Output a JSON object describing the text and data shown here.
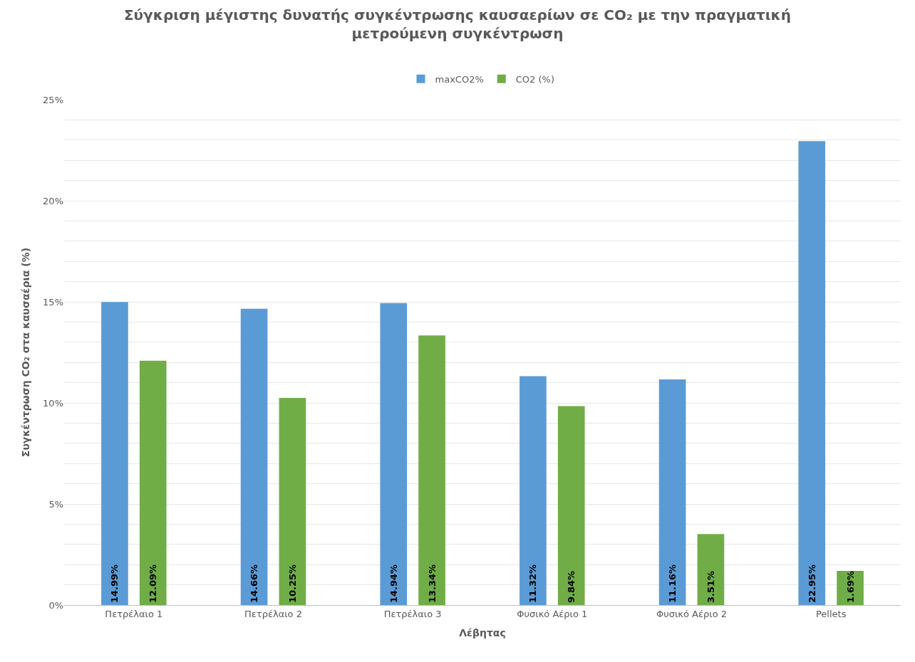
{
  "chart_data": {
    "type": "bar",
    "title": "Σύγκριση μέγιστης δυνατής συγκέντρωσης καυσαερίων σε CO₂ με την πραγματική μετρούμενη συγκέντρωση",
    "xlabel": "Λέβητας",
    "ylabel": "Συγκέντρωση CO₂ στα καυσαέρια (%)",
    "categories": [
      "Πετρέλαιο 1",
      "Πετρέλαιο 2",
      "Πετρέλαιο 3",
      "Φυσικό Αέριο 1",
      "Φυσικό Αέριο 2",
      "Pellets"
    ],
    "series": [
      {
        "name": "maxCO2%",
        "color": "#5b9bd5",
        "values": [
          14.99,
          14.66,
          14.94,
          11.32,
          11.16,
          22.95
        ],
        "value_labels": [
          "14.99%",
          "14.66%",
          "14.94%",
          "11.32%",
          "11.16%",
          "22.95%"
        ]
      },
      {
        "name": "CO2 (%)",
        "color": "#70ad47",
        "values": [
          12.09,
          10.25,
          13.34,
          9.84,
          3.51,
          1.69
        ],
        "value_labels": [
          "12.09%",
          "10.25%",
          "13.34%",
          "9.84%",
          "3.51%",
          "1.69%"
        ]
      }
    ],
    "ylim": [
      0,
      25
    ],
    "yticks": [
      {
        "value": 0,
        "label": "0%"
      },
      {
        "value": 1,
        "label": null
      },
      {
        "value": 2,
        "label": null
      },
      {
        "value": 3,
        "label": null
      },
      {
        "value": 4,
        "label": null
      },
      {
        "value": 5,
        "label": "5%"
      },
      {
        "value": 6,
        "label": null
      },
      {
        "value": 7,
        "label": null
      },
      {
        "value": 8,
        "label": null
      },
      {
        "value": 9,
        "label": null
      },
      {
        "value": 10,
        "label": "10%"
      },
      {
        "value": 11,
        "label": null
      },
      {
        "value": 12,
        "label": null
      },
      {
        "value": 13,
        "label": null
      },
      {
        "value": 14,
        "label": null
      },
      {
        "value": 15,
        "label": "15%"
      },
      {
        "value": 16,
        "label": null
      },
      {
        "value": 17,
        "label": null
      },
      {
        "value": 18,
        "label": null
      },
      {
        "value": 19,
        "label": null
      },
      {
        "value": 20,
        "label": "20%"
      },
      {
        "value": 21,
        "label": null
      },
      {
        "value": 22,
        "label": null
      },
      {
        "value": 23,
        "label": null
      },
      {
        "value": 24,
        "label": null
      },
      {
        "value": 25,
        "label": "25%"
      }
    ],
    "grid": "y",
    "legend": "top"
  }
}
